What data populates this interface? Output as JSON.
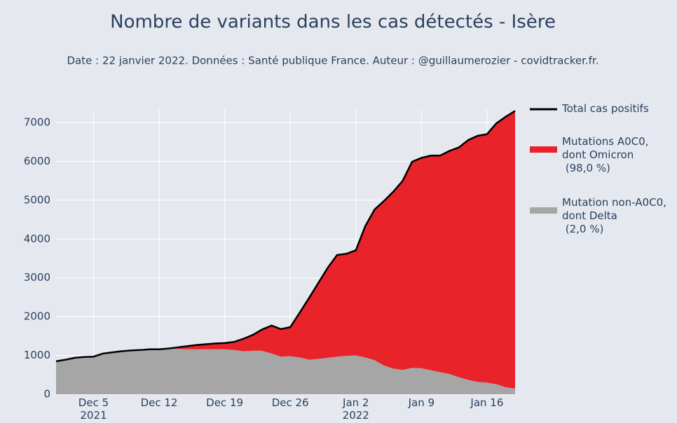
{
  "chart_data": {
    "type": "stacked_area",
    "title": "Nombre de variants dans les cas détectés - Isère",
    "subtitle": "Date : 22 janvier 2022. Données : Santé publique France. Auteur : @guillaumerozier - covidtracker.fr.",
    "x": [
      "2021-12-01",
      "2021-12-02",
      "2021-12-03",
      "2021-12-04",
      "2021-12-05",
      "2021-12-06",
      "2021-12-07",
      "2021-12-08",
      "2021-12-09",
      "2021-12-10",
      "2021-12-11",
      "2021-12-12",
      "2021-12-13",
      "2021-12-14",
      "2021-12-15",
      "2021-12-16",
      "2021-12-17",
      "2021-12-18",
      "2021-12-19",
      "2021-12-20",
      "2021-12-21",
      "2021-12-22",
      "2021-12-23",
      "2021-12-24",
      "2021-12-25",
      "2021-12-26",
      "2021-12-27",
      "2021-12-28",
      "2021-12-29",
      "2021-12-30",
      "2021-12-31",
      "2022-01-01",
      "2022-01-02",
      "2022-01-03",
      "2022-01-04",
      "2022-01-05",
      "2022-01-06",
      "2022-01-07",
      "2022-01-08",
      "2022-01-09",
      "2022-01-10",
      "2022-01-11",
      "2022-01-12",
      "2022-01-13",
      "2022-01-14",
      "2022-01-15",
      "2022-01-16",
      "2022-01-17",
      "2022-01-18",
      "2022-01-19"
    ],
    "series": [
      {
        "name": "Total cas positifs",
        "color": "#000000",
        "kind": "line",
        "values": [
          850,
          890,
          940,
          960,
          970,
          1050,
          1080,
          1110,
          1130,
          1140,
          1160,
          1160,
          1180,
          1210,
          1240,
          1270,
          1290,
          1310,
          1320,
          1350,
          1430,
          1530,
          1670,
          1770,
          1680,
          1730,
          2100,
          2480,
          2870,
          3260,
          3590,
          3620,
          3710,
          4330,
          4760,
          4980,
          5220,
          5500,
          5990,
          6090,
          6150,
          6150,
          6270,
          6360,
          6550,
          6660,
          6700,
          6980,
          7150,
          7300
        ]
      },
      {
        "name": "Mutations A0C0,\ndont Omicron\n (98,0 %)",
        "color": "#e8232a",
        "kind": "area",
        "values": [
          0,
          0,
          0,
          0,
          0,
          0,
          0,
          0,
          0,
          0,
          0,
          0,
          10,
          40,
          80,
          110,
          130,
          150,
          160,
          210,
          320,
          410,
          550,
          720,
          710,
          750,
          1150,
          1590,
          1960,
          2320,
          2620,
          2630,
          2710,
          3380,
          3880,
          4240,
          4560,
          4870,
          5310,
          5420,
          5530,
          5580,
          5750,
          5920,
          6180,
          6340,
          6400,
          6720,
          6970,
          7150
        ]
      },
      {
        "name": "Mutation non-A0C0,\ndont Delta\n (2,0 %)",
        "color": "#a6a6a6",
        "kind": "area",
        "values": [
          850,
          890,
          940,
          960,
          970,
          1050,
          1080,
          1110,
          1130,
          1140,
          1160,
          1160,
          1170,
          1170,
          1160,
          1160,
          1160,
          1160,
          1160,
          1140,
          1110,
          1120,
          1120,
          1050,
          970,
          980,
          950,
          890,
          910,
          940,
          970,
          990,
          1000,
          950,
          880,
          740,
          660,
          630,
          680,
          670,
          620,
          570,
          520,
          440,
          370,
          320,
          300,
          260,
          180,
          150
        ]
      }
    ],
    "xlim": [
      "2021-12-01",
      "2022-01-19"
    ],
    "xticks": [
      {
        "value": "2021-12-05",
        "label": "Dec 5\n2021"
      },
      {
        "value": "2021-12-12",
        "label": "Dec 12"
      },
      {
        "value": "2021-12-19",
        "label": "Dec 19"
      },
      {
        "value": "2021-12-26",
        "label": "Dec 26"
      },
      {
        "value": "2022-01-02",
        "label": "Jan 2\n2022"
      },
      {
        "value": "2022-01-09",
        "label": "Jan 9"
      },
      {
        "value": "2022-01-16",
        "label": "Jan 16"
      }
    ],
    "ylim": [
      0,
      7330
    ],
    "yticks": [
      0,
      1000,
      2000,
      3000,
      4000,
      5000,
      6000,
      7000
    ],
    "grid": true
  }
}
